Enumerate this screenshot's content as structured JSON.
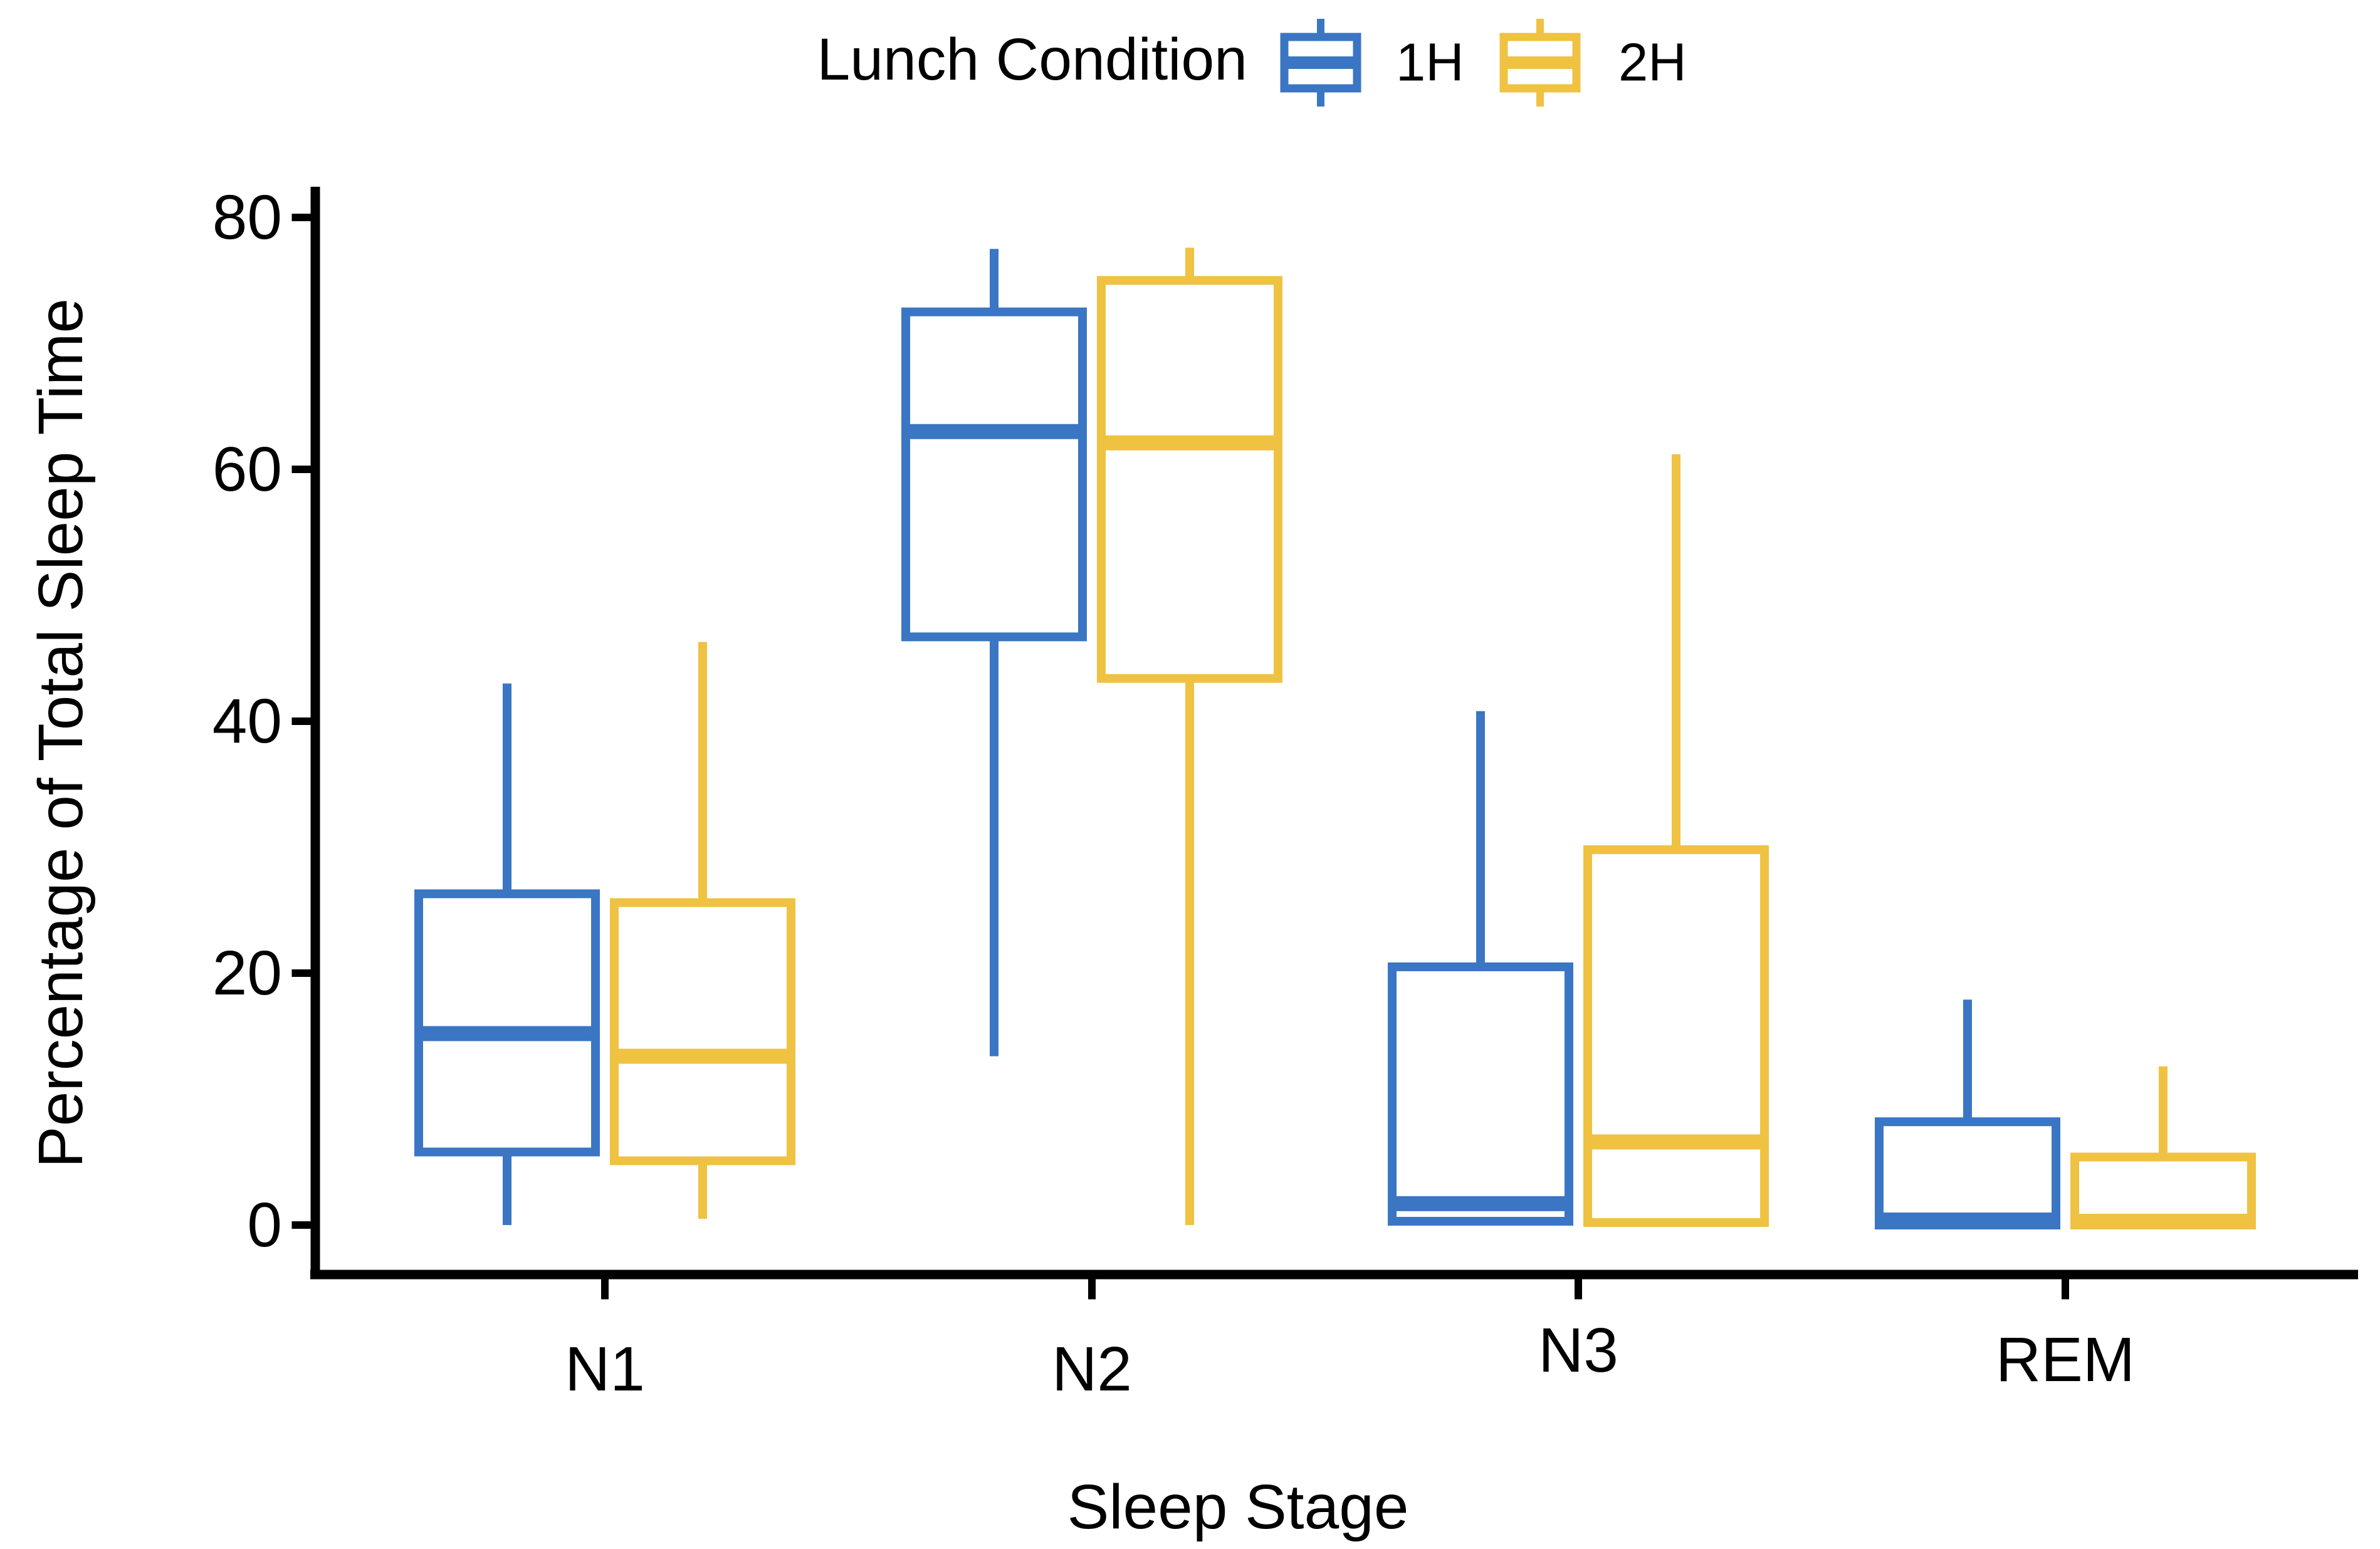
{
  "chart_data": {
    "type": "boxplot",
    "legend_title": "Lunch Condition",
    "xlabel": "Sleep Stage",
    "ylabel": "Percentage of Total Sleep Time",
    "categories": [
      "N1",
      "N2",
      "N3",
      "REM"
    ],
    "yticks": [
      0,
      20,
      40,
      60,
      80
    ],
    "ytick_labels": [
      "0",
      "20",
      "40",
      "60",
      "80"
    ],
    "ylim": [
      0,
      80
    ],
    "grid": false,
    "legend_position": "top-center",
    "axis_color": "#000000",
    "background_color": "#ffffff",
    "series": [
      {
        "name": "1H",
        "color": "#3A76C3",
        "boxes": [
          {
            "category": "N1",
            "min": 0,
            "q1": 5.8,
            "median": 15.2,
            "q3": 26.3,
            "max": 43.0
          },
          {
            "category": "N2",
            "min": 13.4,
            "q1": 46.7,
            "median": 63.0,
            "q3": 72.5,
            "max": 77.5
          },
          {
            "category": "N3",
            "min": 0,
            "q1": 0.3,
            "median": 1.7,
            "q3": 20.5,
            "max": 40.8
          },
          {
            "category": "REM",
            "min": 0,
            "q1": 0,
            "median": 0.4,
            "q3": 8.2,
            "max": 17.9
          }
        ]
      },
      {
        "name": "2H",
        "color": "#EFC242",
        "boxes": [
          {
            "category": "N1",
            "min": 0.5,
            "q1": 5.1,
            "median": 13.4,
            "q3": 25.6,
            "max": 46.3
          },
          {
            "category": "N2",
            "min": 0,
            "q1": 43.4,
            "median": 62.1,
            "q3": 75.0,
            "max": 77.6
          },
          {
            "category": "N3",
            "min": 0,
            "q1": 0.2,
            "median": 6.6,
            "q3": 29.8,
            "max": 61.2
          },
          {
            "category": "REM",
            "min": 0,
            "q1": 0,
            "median": 0.3,
            "q3": 5.4,
            "max": 12.6
          }
        ]
      }
    ]
  }
}
